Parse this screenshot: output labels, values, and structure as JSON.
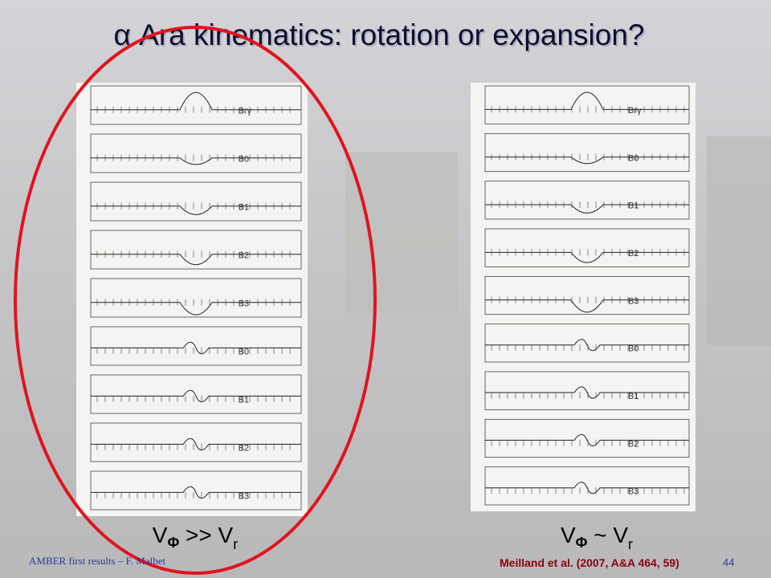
{
  "title": "α Ara kinematics: rotation or expansion?",
  "panels": [
    {
      "labels": [
        "Brγ",
        "B0",
        "B1",
        "B2",
        "B3",
        "B0",
        "B1",
        "B2",
        "B3"
      ],
      "caption": [
        "V",
        "Φ",
        " >> V",
        "r"
      ]
    },
    {
      "labels": [
        "Brγ",
        "B0",
        "B1",
        "B2",
        "B3",
        "B0",
        "B1",
        "B2",
        "B3"
      ],
      "caption": [
        "V",
        "Φ",
        " ~ V",
        "r"
      ]
    }
  ],
  "footer": {
    "author": "AMBER first results – F. Malbet",
    "citation": "Meilland et al. (2007, A&A 464, 59)",
    "page": "44"
  }
}
